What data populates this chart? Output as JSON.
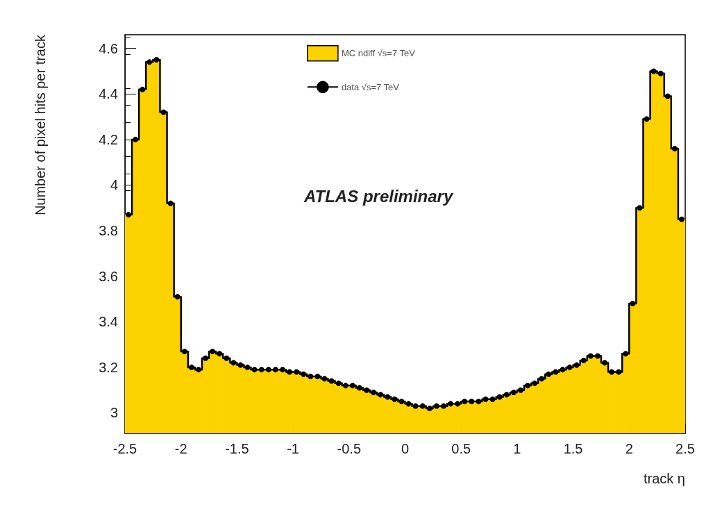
{
  "chart_data": {
    "type": "histogram",
    "xlabel": "track η",
    "ylabel": "Number of pixel hits per track",
    "annotations": [
      "ATLAS preliminary"
    ],
    "bins": [
      -2.5,
      -2.4375,
      -2.375,
      -2.3125,
      -2.25,
      -2.1875,
      -2.125,
      -2.0625,
      -2,
      -1.9375,
      -1.875,
      -1.8125,
      -1.75,
      -1.6875,
      -1.625,
      -1.5625,
      -1.5,
      -1.4375,
      -1.375,
      -1.3125,
      -1.25,
      -1.1875,
      -1.125,
      -1.0625,
      -1,
      -0.9375,
      -0.875,
      -0.8125,
      -0.75,
      -0.6875,
      -0.625,
      -0.5625,
      -0.5,
      -0.4375,
      -0.375,
      -0.3125,
      -0.25,
      -0.1875,
      -0.125,
      -0.0625,
      0,
      0.0625,
      0.125,
      0.1875,
      0.25,
      0.3125,
      0.375,
      0.4375,
      0.5,
      0.5625,
      0.625,
      0.6875,
      0.75,
      0.8125,
      0.875,
      0.9375,
      1,
      1.0625,
      1.125,
      1.1875,
      1.25,
      1.3125,
      1.375,
      1.4375,
      1.5,
      1.5625,
      1.625,
      1.6875,
      1.75,
      1.8125,
      1.875,
      1.9375,
      2,
      2.0625,
      2.125,
      2.1875,
      2.25,
      2.3125,
      2.375,
      2.4375,
      2.5
    ],
    "series": [
      {
        "name": "MC ndiff √s=7 TeV",
        "color": "#fcd200",
        "values": [
          3.87,
          4.2,
          4.42,
          4.54,
          4.55,
          4.32,
          3.92,
          3.51,
          3.27,
          3.2,
          3.19,
          3.24,
          3.27,
          3.26,
          3.24,
          3.22,
          3.21,
          3.2,
          3.19,
          3.19,
          3.19,
          3.19,
          3.19,
          3.18,
          3.18,
          3.17,
          3.16,
          3.16,
          3.15,
          3.14,
          3.13,
          3.12,
          3.12,
          3.11,
          3.1,
          3.09,
          3.08,
          3.07,
          3.06,
          3.05,
          3.04,
          3.03,
          3.03,
          3.02,
          3.03,
          3.03,
          3.04,
          3.04,
          3.05,
          3.05,
          3.05,
          3.06,
          3.06,
          3.07,
          3.08,
          3.09,
          3.1,
          3.12,
          3.13,
          3.15,
          3.17,
          3.18,
          3.19,
          3.2,
          3.21,
          3.23,
          3.25,
          3.25,
          3.22,
          3.18,
          3.18,
          3.26,
          3.48,
          3.9,
          4.29,
          4.5,
          4.49,
          4.39,
          4.16,
          3.85
        ]
      },
      {
        "name": "data √s=7 TeV",
        "type": "step",
        "color": "#000000",
        "marker": "circle",
        "line_style": "solid",
        "x": [
          -2.46875,
          -2.40625,
          -2.34375,
          -2.28125,
          -2.21875,
          -2.15625,
          -2.09375,
          -2.03125,
          -1.96875,
          -1.90625,
          -1.84375,
          -1.78125,
          -1.71875,
          -1.65625,
          -1.59375,
          -1.53125,
          -1.46875,
          -1.40625,
          -1.34375,
          -1.28125,
          -1.21875,
          -1.15625,
          -1.09375,
          -1.03125,
          -0.96875,
          -0.90625,
          -0.84375,
          -0.78125,
          -0.71875,
          -0.65625,
          -0.59375,
          -0.53125,
          -0.46875,
          -0.40625,
          -0.34375,
          -0.28125,
          -0.21875,
          -0.15625,
          -0.09375,
          -0.03125,
          0.03125,
          0.09375,
          0.15625,
          0.21875,
          0.28125,
          0.34375,
          0.40625,
          0.46875,
          0.53125,
          0.59375,
          0.65625,
          0.71875,
          0.78125,
          0.84375,
          0.90625,
          0.96875,
          1.03125,
          1.09375,
          1.15625,
          1.21875,
          1.28125,
          1.34375,
          1.40625,
          1.46875,
          1.53125,
          1.59375,
          1.65625,
          1.71875,
          1.78125,
          1.84375,
          1.90625,
          1.96875,
          2.03125,
          2.09375,
          2.15625,
          2.21875,
          2.28125,
          2.34375,
          2.40625,
          2.46875
        ],
        "values": [
          3.87,
          4.2,
          4.42,
          4.54,
          4.55,
          4.32,
          3.92,
          3.51,
          3.27,
          3.2,
          3.19,
          3.24,
          3.27,
          3.26,
          3.24,
          3.22,
          3.21,
          3.2,
          3.19,
          3.19,
          3.19,
          3.19,
          3.19,
          3.18,
          3.18,
          3.17,
          3.16,
          3.16,
          3.15,
          3.14,
          3.13,
          3.12,
          3.12,
          3.11,
          3.1,
          3.09,
          3.08,
          3.07,
          3.06,
          3.05,
          3.04,
          3.03,
          3.03,
          3.02,
          3.03,
          3.03,
          3.04,
          3.04,
          3.05,
          3.05,
          3.05,
          3.06,
          3.06,
          3.07,
          3.08,
          3.09,
          3.1,
          3.12,
          3.13,
          3.15,
          3.17,
          3.18,
          3.19,
          3.2,
          3.21,
          3.23,
          3.25,
          3.25,
          3.22,
          3.18,
          3.18,
          3.26,
          3.48,
          3.9,
          4.29,
          4.5,
          4.49,
          4.39,
          4.16,
          3.85
        ]
      }
    ],
    "xlim": [
      -2.5,
      2.5
    ],
    "xticks": [
      -2.5,
      -2,
      -1.5,
      -1,
      -0.5,
      0,
      0.5,
      1,
      1.5,
      2,
      2.5
    ],
    "ylim": [
      2.91,
      4.66
    ],
    "yticks": [
      3,
      3.2,
      3.4,
      3.6,
      3.8,
      4,
      4.2,
      4.4,
      4.6
    ],
    "grid": false,
    "legend": "top"
  }
}
